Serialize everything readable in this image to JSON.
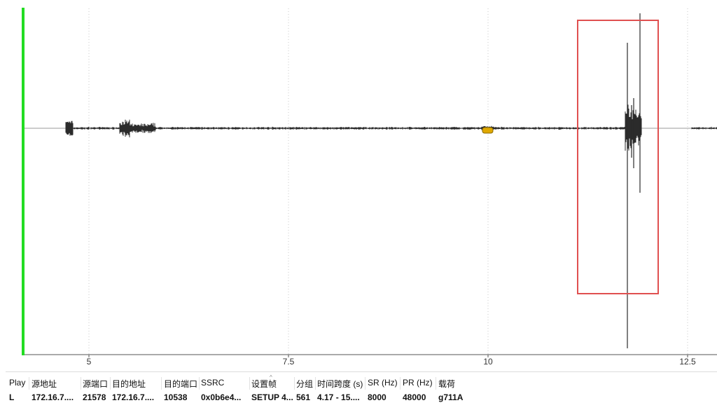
{
  "waveform": {
    "x_axis": {
      "ticks": [
        {
          "label": "5"
        },
        {
          "label": "7.5"
        },
        {
          "label": "10"
        },
        {
          "label": "12.5"
        }
      ]
    },
    "colors": {
      "playhead": "#22dd22",
      "signal": "#2b2b2b",
      "center_line": "#9a9a9a",
      "grid": "#c8c8c8",
      "selection": "#e05050",
      "marker": "#e0a800"
    },
    "selection_box": "highlight"
  },
  "stream_table": {
    "columns": [
      "Play",
      "源地址",
      "源端口",
      "目的地址",
      "目的端口",
      "SSRC",
      "设置帧",
      "分组",
      "时间跨度 (s)",
      "SR (Hz)",
      "PR (Hz)",
      "载荷"
    ],
    "rows": [
      {
        "play": "L",
        "src_addr": "172.16.7....",
        "src_port": "21578",
        "dst_addr": "172.16.7....",
        "dst_port": "10538",
        "ssrc": "0x0b6e4...",
        "setup_frame": "SETUP 4...",
        "packets": "561",
        "time_span": "4.17 - 15....",
        "sr": "8000",
        "pr": "48000",
        "payload": "g711A"
      }
    ]
  }
}
